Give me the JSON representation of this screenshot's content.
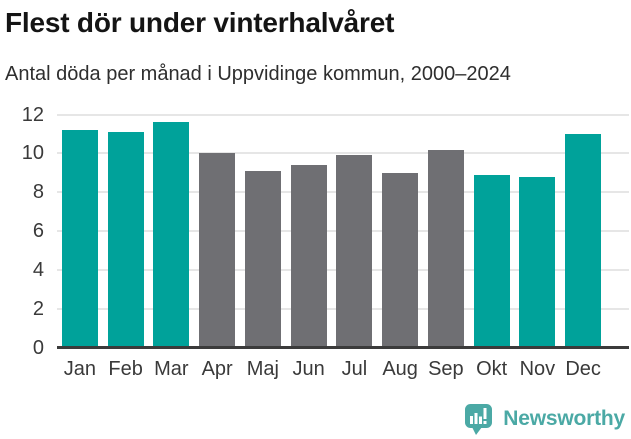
{
  "header": {
    "title": "Flest dör under vinterhalvåret",
    "subtitle": "Antal döda per månad i Uppvidinge kommun, 2000–2024"
  },
  "chart_data": {
    "type": "bar",
    "title": "Flest dör under vinterhalvåret",
    "subtitle": "Antal döda per månad i Uppvidinge kommun, 2000–2024",
    "categories": [
      "Jan",
      "Feb",
      "Mar",
      "Apr",
      "Maj",
      "Jun",
      "Jul",
      "Aug",
      "Sep",
      "Okt",
      "Nov",
      "Dec"
    ],
    "values": [
      11.2,
      11.1,
      11.6,
      10.0,
      9.1,
      9.4,
      9.9,
      9.0,
      10.2,
      8.9,
      8.8,
      11.0
    ],
    "bar_colors": [
      "#00a29a",
      "#00a29a",
      "#00a29a",
      "#6f6f73",
      "#6f6f73",
      "#6f6f73",
      "#6f6f73",
      "#6f6f73",
      "#6f6f73",
      "#00a29a",
      "#00a29a",
      "#00a29a"
    ],
    "palette": {
      "highlight_teal": "#00a29a",
      "neutral_gray": "#6f6f73"
    },
    "xlabel": "",
    "ylabel": "",
    "ylim": [
      0,
      12
    ],
    "yticks": [
      0,
      2,
      4,
      6,
      8,
      10,
      12
    ],
    "grid": true,
    "legend": "none"
  },
  "footer": {
    "logo_text": "Newsworthy",
    "brand_color": "#4ba9a5"
  }
}
